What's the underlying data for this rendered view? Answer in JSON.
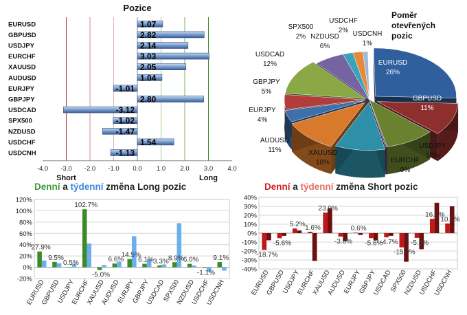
{
  "chart_data": [
    {
      "type": "bar",
      "orientation": "horizontal",
      "title": "Pozice",
      "categories": [
        "EURUSD",
        "GBPUSD",
        "USDJPY",
        "EURCHF",
        "XAUUSD",
        "AUDUSD",
        "EURJPY",
        "GBPJPY",
        "USDCAD",
        "SPX500",
        "NZDUSD",
        "USDCHF",
        "USDCNH"
      ],
      "values": [
        1.07,
        2.82,
        2.14,
        3.03,
        2.05,
        1.04,
        -1.01,
        2.8,
        -3.12,
        -1.02,
        -1.47,
        1.54,
        -1.13
      ],
      "value_labels": [
        "1.07",
        "2.82",
        "2.14",
        "3.03",
        "2.05",
        "1.04",
        "-1.01",
        "2.80",
        "-3.12",
        "-1.02",
        "-1.47",
        "1.54",
        "-1.13"
      ],
      "xlim": [
        -4.0,
        4.0
      ],
      "xticks": [
        "-4.0",
        "-3.0",
        "-2.0",
        "-1.0",
        "0.0",
        "1.0",
        "2.0",
        "3.0",
        "4.0"
      ],
      "annotations": [
        "Short",
        "Long"
      ]
    },
    {
      "type": "pie",
      "title": "Poměr otevřených pozic",
      "labels": [
        "EURUSD",
        "GBPUSD",
        "USDJPY",
        "EURCHF",
        "XAUUSD",
        "AUDUSD",
        "EURJPY",
        "GBPJPY",
        "USDCAD",
        "NZDUSD",
        "SPX500",
        "USDCHF",
        "USDCNH"
      ],
      "value_labels": [
        "26%",
        "11%",
        "10%",
        "0%",
        "10%",
        "11%",
        "4%",
        "5%",
        "12%",
        "6%",
        "2%",
        "2%",
        "1%"
      ],
      "values": [
        26,
        11,
        10,
        0.3,
        10,
        11,
        4,
        5,
        12,
        6,
        2,
        2,
        1
      ],
      "colors": [
        "#2f5f9c",
        "#8f2f2d",
        "#6a8230",
        "#5d4a85",
        "#2e8fa8",
        "#d9792b",
        "#3d70a8",
        "#b23c3a",
        "#8aa845",
        "#7664a0",
        "#3aa3bc",
        "#e8893a",
        "#9eb7d8"
      ]
    },
    {
      "type": "bar",
      "title_parts": [
        "Denní",
        " a ",
        "týdenní",
        " změna Long pozic"
      ],
      "title_colors": [
        "#3a9a3a",
        "#222222",
        "#3a8ad8",
        "#222222"
      ],
      "categories": [
        "EURUSD",
        "GBPUSD",
        "USDJPY",
        "EURCHF",
        "XAUUSD",
        "AUDUSD",
        "EURJPY",
        "GBPJPY",
        "USDCAD",
        "SPX500",
        "NZDUSD",
        "USDCHF",
        "USDCNH"
      ],
      "series": [
        {
          "values": [
            27.9,
            9.5,
            0.5,
            102.7,
            -5.0,
            6.6,
            14.5,
            6.1,
            3.3,
            8.9,
            6.0,
            -1.1,
            9.1
          ],
          "color": "#3e8a2a"
        },
        {
          "values": [
            12,
            7,
            6,
            42,
            4,
            10,
            55,
            14,
            5,
            78,
            3,
            -8,
            -6
          ],
          "color": "#6ab0ec"
        }
      ],
      "data_labels": [
        "27.9%",
        "9.5%",
        "0.5%",
        "102.7%",
        "-5.0%",
        "6.6%",
        "14.5%",
        "6.1%",
        "3.3%",
        "8.9%",
        "6.0%",
        "-1.1%",
        "9.1%"
      ],
      "ylim": [
        -20,
        120
      ],
      "yticks": [
        "-20%",
        "0%",
        "20%",
        "40%",
        "60%",
        "80%",
        "100%",
        "120%"
      ]
    },
    {
      "type": "bar",
      "title_parts": [
        "Denní",
        " a ",
        "týdenní",
        " změna Short pozic"
      ],
      "title_colors": [
        "#d02020",
        "#222222",
        "#e07060",
        "#222222"
      ],
      "categories": [
        "EURUSD",
        "GBPUSD",
        "USDJPY",
        "EURCHF",
        "XAUUSD",
        "AUDUSD",
        "EURJPY",
        "GBPJPY",
        "USDCAD",
        "SPX500",
        "NZDUSD",
        "USDCHF",
        "USDCNH"
      ],
      "series": [
        {
          "values": [
            -18.7,
            -5.6,
            5.2,
            1.6,
            23.0,
            -3.8,
            0.6,
            -5.6,
            -4.7,
            -15.9,
            -5.3,
            16.0,
            10.8
          ],
          "color": "#c01818"
        },
        {
          "values": [
            -8,
            -3,
            3,
            -31,
            28,
            -9,
            -2,
            -8,
            -3,
            -32,
            -18,
            34,
            30
          ],
          "color": "#6a1010"
        }
      ],
      "data_labels": [
        "-18.7%",
        "-5.6%",
        "5.2%",
        "1.6%",
        "23.0%",
        "-3.8%",
        "0.6%",
        "-5.6%",
        "-4.7%",
        "-15.9%",
        "-5.3%",
        "16.0%",
        "10.8%"
      ],
      "ylim": [
        -40,
        40
      ],
      "yticks": [
        "-40%",
        "-30%",
        "-20%",
        "-10%",
        "0%",
        "10%",
        "20%",
        "30%",
        "40%"
      ]
    }
  ]
}
